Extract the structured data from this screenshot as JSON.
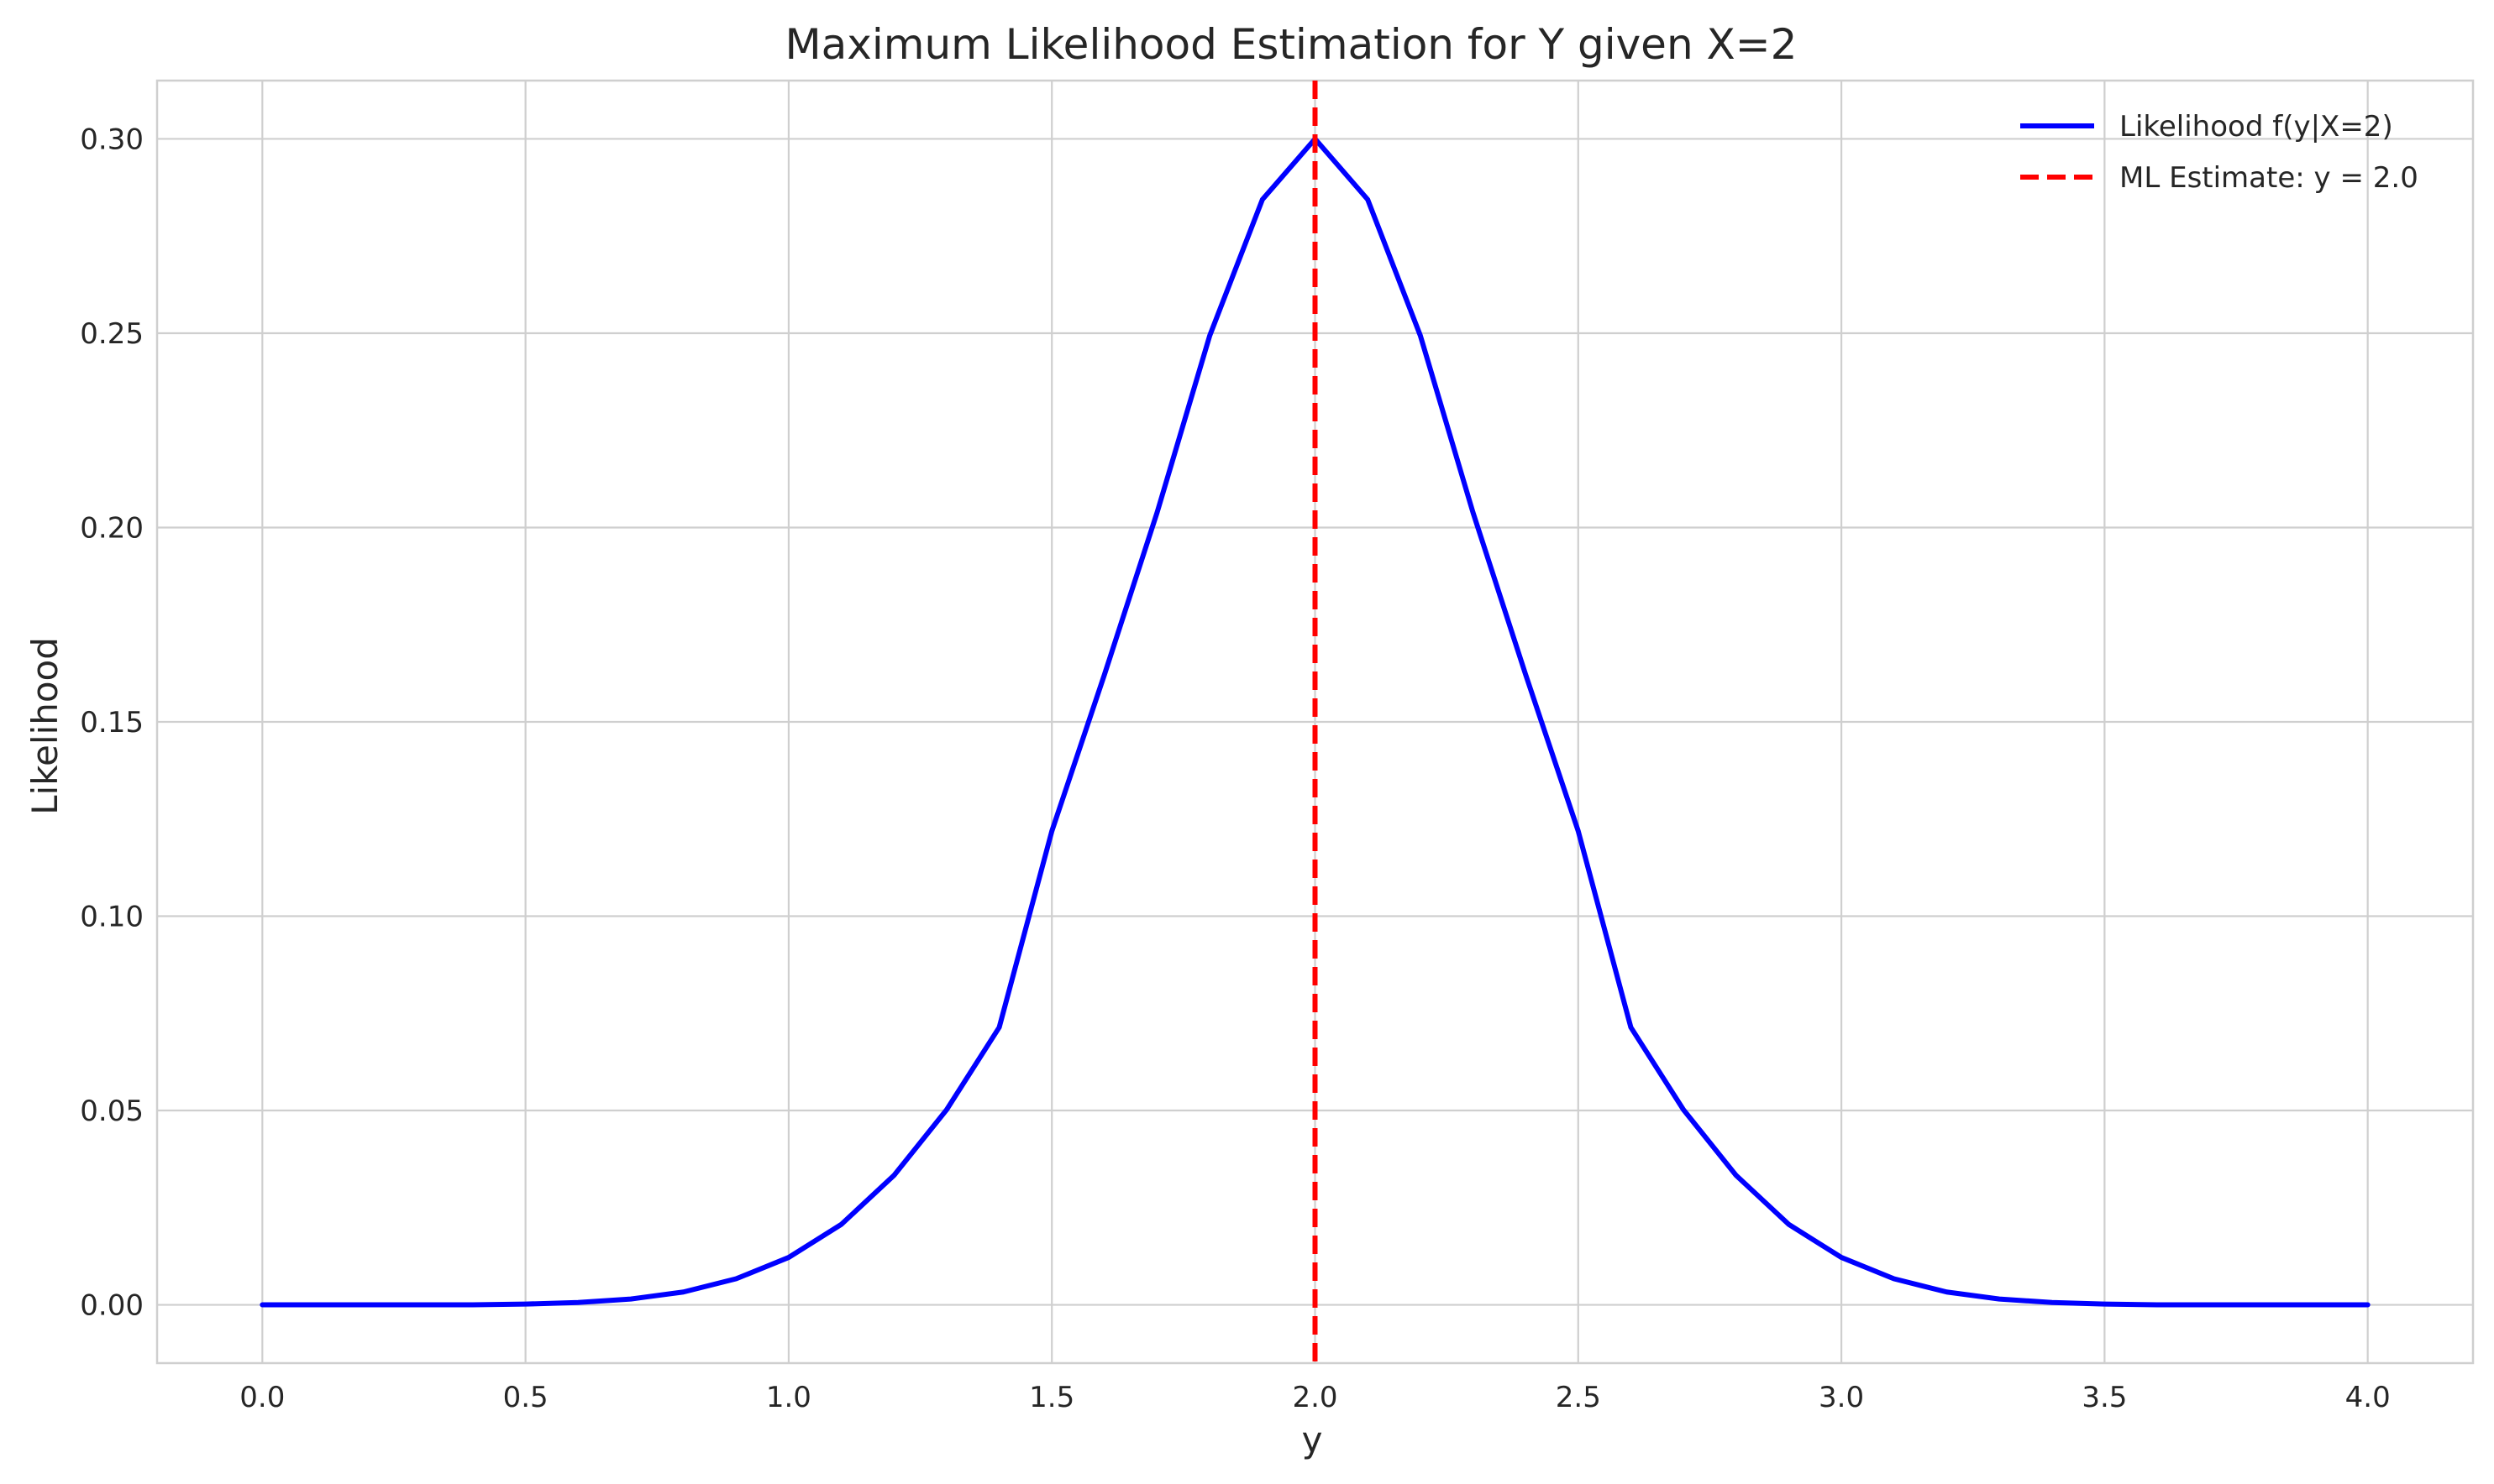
{
  "chart_data": {
    "type": "line",
    "title": "Maximum Likelihood Estimation for Y given X=2",
    "xlabel": "y",
    "ylabel": "Likelihood",
    "xlim": [
      -0.2,
      4.2
    ],
    "ylim": [
      -0.015,
      0.315
    ],
    "xticks": [
      0.0,
      0.5,
      1.0,
      1.5,
      2.0,
      2.5,
      3.0,
      3.5,
      4.0
    ],
    "xtick_labels": [
      "0.0",
      "0.5",
      "1.0",
      "1.5",
      "2.0",
      "2.5",
      "3.0",
      "3.5",
      "4.0"
    ],
    "yticks": [
      0.0,
      0.05,
      0.1,
      0.15,
      0.2,
      0.25,
      0.3
    ],
    "ytick_labels": [
      "0.00",
      "0.05",
      "0.10",
      "0.15",
      "0.20",
      "0.25",
      "0.30"
    ],
    "grid": true,
    "legend_position": "top-right",
    "series": [
      {
        "name": "Likelihood f(y|X=2)",
        "color": "#0000ff",
        "style": "solid",
        "x": [
          0.0,
          0.1,
          0.2,
          0.3,
          0.4,
          0.5,
          0.6,
          0.7,
          0.8,
          0.9,
          1.0,
          1.1,
          1.2,
          1.3,
          1.4,
          1.5,
          1.6,
          1.7,
          1.8,
          1.9,
          2.0,
          2.1,
          2.2,
          2.3,
          2.4,
          2.5,
          2.6,
          2.7,
          2.8,
          2.9,
          3.0,
          3.1,
          3.2,
          3.3,
          3.4,
          3.5,
          3.6,
          3.7,
          3.8,
          3.9,
          4.0
        ],
        "y": [
          0.0,
          0.0,
          0.0,
          0.0,
          0.0,
          0.0002,
          0.0006,
          0.0015,
          0.0033,
          0.0067,
          0.0122,
          0.0207,
          0.0333,
          0.0502,
          0.0714,
          0.1219,
          0.1622,
          0.2039,
          0.2494,
          0.2844,
          0.3,
          0.2844,
          0.2494,
          0.2039,
          0.1622,
          0.1219,
          0.0714,
          0.0502,
          0.0333,
          0.0207,
          0.0122,
          0.0067,
          0.0033,
          0.0015,
          0.0006,
          0.0002,
          0.0,
          0.0,
          0.0,
          0.0,
          0.0
        ]
      },
      {
        "name": "ML Estimate: y = 2.0",
        "color": "#ff0000",
        "style": "dashed",
        "vline_x": 2.0
      }
    ]
  }
}
